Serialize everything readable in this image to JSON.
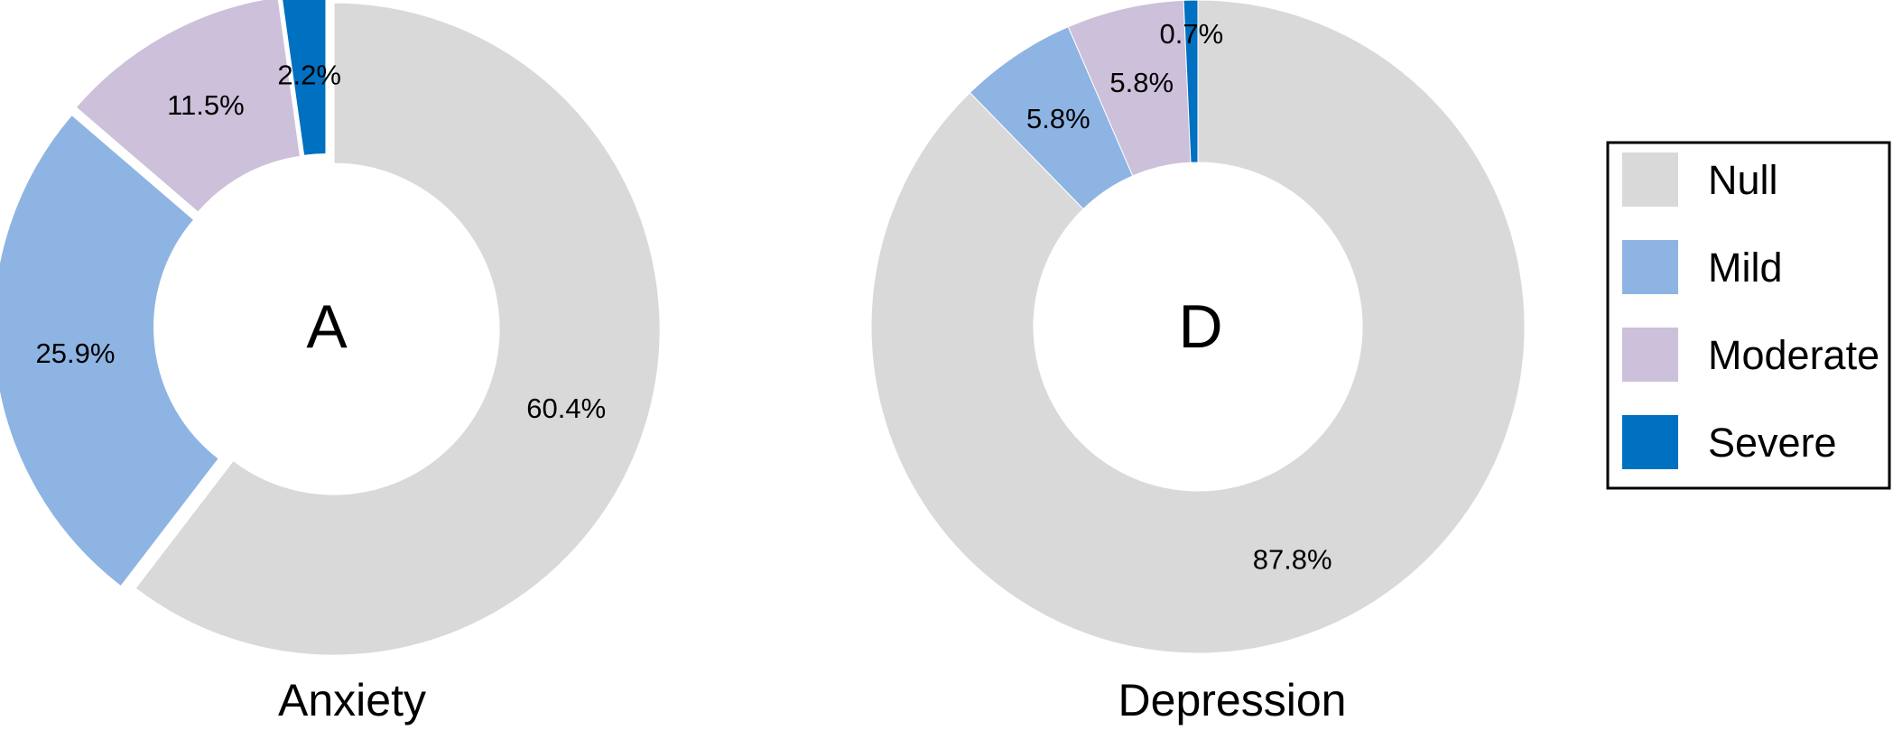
{
  "legend": {
    "entries": [
      {
        "label": "Null",
        "color": "#d9d9d9"
      },
      {
        "label": "Mild",
        "color": "#8eb4e3"
      },
      {
        "label": "Moderate",
        "color": "#ccc0da"
      },
      {
        "label": "Severe",
        "color": "#0070c0"
      }
    ]
  },
  "chart_data": [
    {
      "type": "pie",
      "variant": "donut",
      "center_label": "A",
      "caption": "Anxiety",
      "categories": [
        "Null",
        "Mild",
        "Moderate",
        "Severe"
      ],
      "values": [
        60.4,
        25.9,
        11.5,
        2.2
      ],
      "labels": [
        "60.4%",
        "25.9%",
        "11.5%",
        "2.2%"
      ],
      "exploded": true
    },
    {
      "type": "pie",
      "variant": "donut",
      "center_label": "D",
      "caption": "Depression",
      "categories": [
        "Null",
        "Mild",
        "Moderate",
        "Severe"
      ],
      "values": [
        87.8,
        5.8,
        5.8,
        0.7
      ],
      "labels": [
        "87.8%",
        "5.8%",
        "5.8%",
        "0.7%"
      ],
      "exploded": false
    }
  ]
}
